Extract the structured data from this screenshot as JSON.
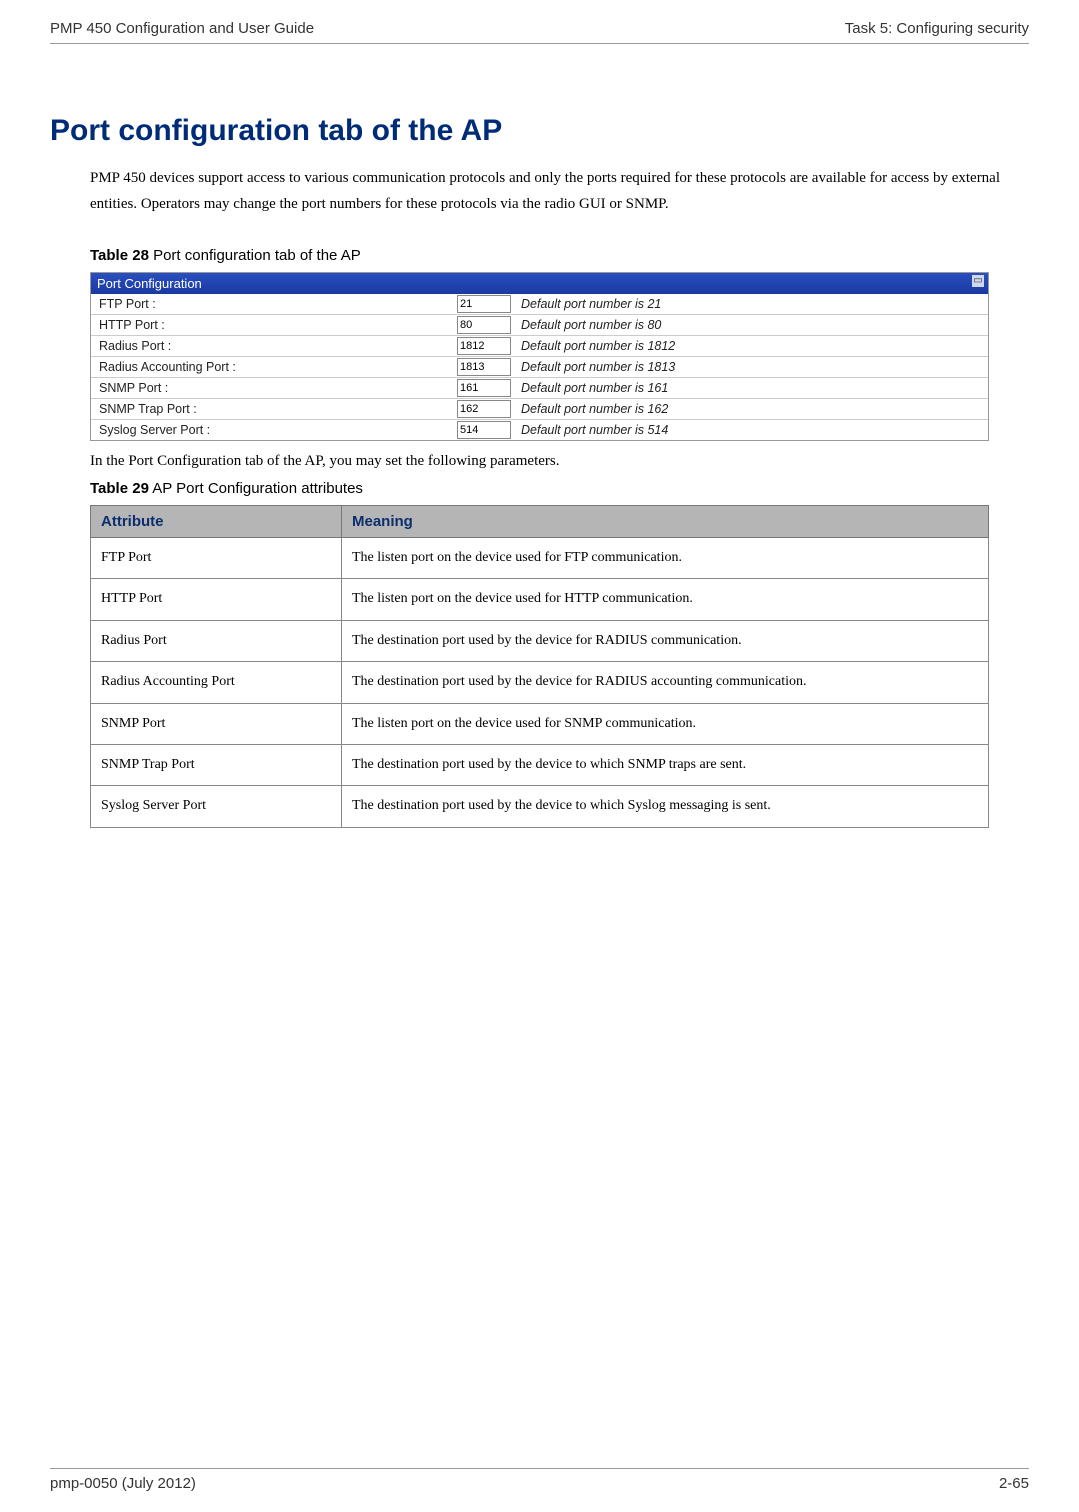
{
  "header": {
    "left": "PMP 450 Configuration and User Guide",
    "right": "Task 5: Configuring security"
  },
  "section": {
    "heading": "Port configuration tab of the AP",
    "intro": "PMP 450 devices support access to various communication protocols and only the ports required for these protocols are available for access by external entities.  Operators may change the port numbers for these protocols via the radio GUI or SNMP."
  },
  "table28": {
    "caption_bold": "Table 28",
    "caption_rest": "  Port configuration tab of the AP",
    "panel_title": "Port Configuration",
    "rows": [
      {
        "label": "FTP Port :",
        "value": "21",
        "desc": "Default port number is 21"
      },
      {
        "label": "HTTP Port :",
        "value": "80",
        "desc": "Default port number is 80"
      },
      {
        "label": "Radius Port :",
        "value": "1812",
        "desc": "Default port number is 1812"
      },
      {
        "label": "Radius Accounting Port :",
        "value": "1813",
        "desc": "Default port number is 1813"
      },
      {
        "label": "SNMP Port :",
        "value": "161",
        "desc": "Default port number is 161"
      },
      {
        "label": "SNMP Trap Port :",
        "value": "162",
        "desc": "Default port number is 162"
      },
      {
        "label": "Syslog Server Port :",
        "value": "514",
        "desc": "Default port number is 514"
      }
    ]
  },
  "between_text": "In the Port Configuration tab of the AP, you may set the following parameters.",
  "table29": {
    "caption_bold": "Table 29",
    "caption_rest": "  AP Port Configuration attributes",
    "col1": "Attribute",
    "col2": "Meaning",
    "rows": [
      {
        "attr": "FTP Port",
        "meaning": "The listen port on the device used for FTP communication."
      },
      {
        "attr": "HTTP Port",
        "meaning": "The listen port on the device used for HTTP communication."
      },
      {
        "attr": "Radius Port",
        "meaning": "The destination port used by the device for RADIUS communication."
      },
      {
        "attr": "Radius Accounting Port",
        "meaning": "The destination port used by the device for RADIUS accounting communication."
      },
      {
        "attr": "SNMP Port",
        "meaning": "The listen port on the device used for SNMP communication."
      },
      {
        "attr": "SNMP Trap Port",
        "meaning": "The destination port used by the device to which SNMP traps are sent."
      },
      {
        "attr": "Syslog Server Port",
        "meaning": "The destination port used by the device to which Syslog messaging is sent."
      }
    ]
  },
  "footer": {
    "left": "pmp-0050 (July 2012)",
    "right": "2-65"
  }
}
